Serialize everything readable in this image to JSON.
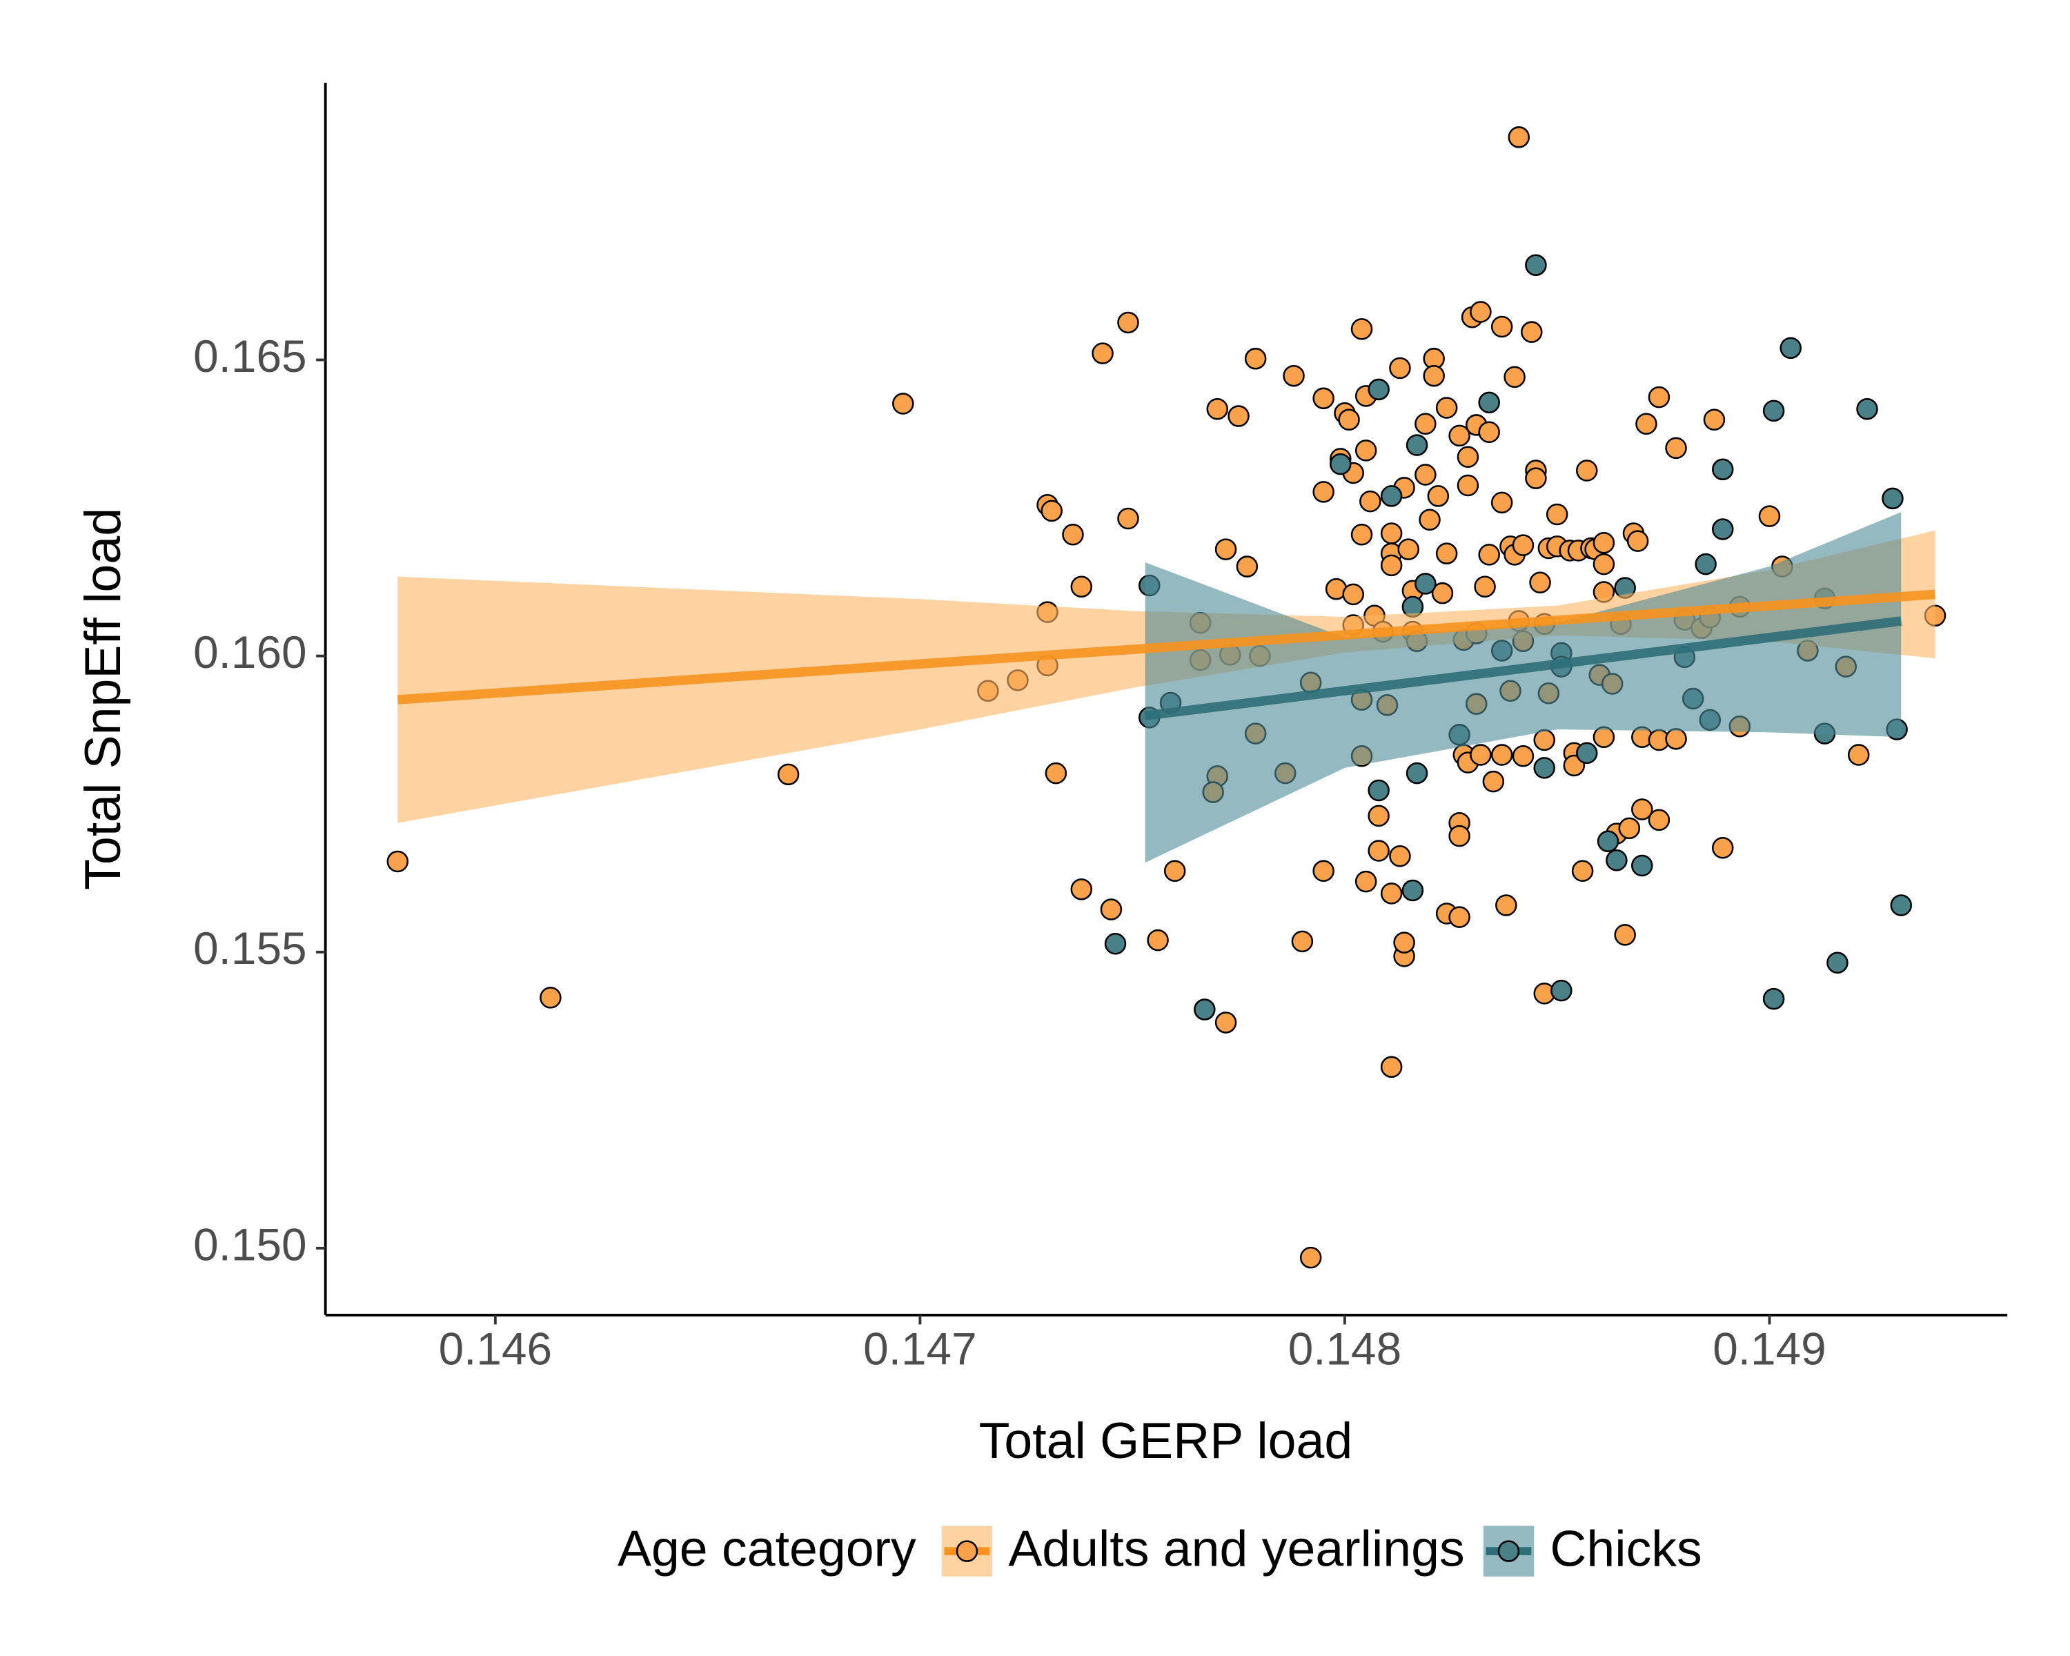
{
  "chart_data": {
    "type": "scatter",
    "xlabel": "Total GERP load",
    "ylabel": "Total SnpEff load",
    "legend_title": "Age category",
    "legend": "bottom",
    "xlim": [
      0.1456,
      0.14956
    ],
    "ylim": [
      0.14887,
      0.16968
    ],
    "xticks": [
      0.146,
      0.147,
      0.148,
      0.149
    ],
    "yticks": [
      {
        "value": 0.15,
        "label": "0.150"
      },
      0.155,
      {
        "value": 0.16,
        "label": "0.160"
      },
      0.165
    ],
    "series": [
      {
        "name": "Adults and yearlings",
        "color": "#f7931e",
        "point_color": "#f9a24b",
        "band_color": "#fdb462",
        "x": [
          0.14577,
          0.14613,
          0.14669,
          0.14696,
          0.14716,
          0.14723,
          0.1473,
          0.14731,
          0.1473,
          0.1473,
          0.14732,
          0.14736,
          0.14738,
          0.14738,
          0.14743,
          0.14745,
          0.14749,
          0.14749,
          0.14756,
          0.1476,
          0.14766,
          0.14766,
          0.1477,
          0.1477,
          0.14772,
          0.14769,
          0.14773,
          0.14775,
          0.14777,
          0.14779,
          0.14779,
          0.1478,
          0.14772,
          0.14786,
          0.14788,
          0.1479,
          0.14792,
          0.14792,
          0.14795,
          0.14795,
          0.14795,
          0.14798,
          0.14799,
          0.148,
          0.14801,
          0.14802,
          0.14802,
          0.14802,
          0.14804,
          0.14804,
          0.14804,
          0.14805,
          0.14804,
          0.14805,
          0.14806,
          0.14805,
          0.14807,
          0.14808,
          0.14808,
          0.14809,
          0.1481,
          0.14811,
          0.14811,
          0.14811,
          0.14813,
          0.14811,
          0.14813,
          0.14814,
          0.14814,
          0.14811,
          0.14814,
          0.14815,
          0.14816,
          0.14816,
          0.14817,
          0.14819,
          0.14819,
          0.1482,
          0.14821,
          0.14821,
          0.14822,
          0.14823,
          0.14824,
          0.14824,
          0.14824,
          0.14827,
          0.14827,
          0.14827,
          0.14827,
          0.14828,
          0.14828,
          0.14829,
          0.14829,
          0.14829,
          0.1483,
          0.14831,
          0.14831,
          0.14831,
          0.14832,
          0.14832,
          0.14833,
          0.14834,
          0.14834,
          0.14835,
          0.14837,
          0.14837,
          0.14837,
          0.14838,
          0.14839,
          0.14839,
          0.1484,
          0.1484,
          0.14841,
          0.14842,
          0.14841,
          0.14842,
          0.14842,
          0.14844,
          0.14845,
          0.14845,
          0.14846,
          0.14847,
          0.14847,
          0.14847,
          0.14848,
          0.14848,
          0.1485,
          0.1485,
          0.14853,
          0.14854,
          0.14854,
          0.14855,
          0.14856,
          0.14857,
          0.14858,
          0.14859,
          0.1486,
          0.14861,
          0.14861,
          0.14861,
          0.14861,
          0.14863,
          0.14864,
          0.14865,
          0.14866,
          0.14867,
          0.14868,
          0.14869,
          0.1487,
          0.1487,
          0.14871,
          0.14874,
          0.14874,
          0.14874,
          0.14878,
          0.14878,
          0.1488,
          0.14884,
          0.14886,
          0.14887,
          0.14889,
          0.14893,
          0.14893,
          0.149,
          0.14903,
          0.14909,
          0.14913,
          0.14921,
          0.14939,
          0.14918
        ],
        "y": [
          0.15653,
          0.15423,
          0.158,
          0.16426,
          0.15941,
          0.15959,
          0.16255,
          0.16245,
          0.16074,
          0.15984,
          0.15802,
          0.16205,
          0.16117,
          0.15606,
          0.16511,
          0.15572,
          0.16232,
          0.16563,
          0.1552,
          0.15637,
          0.16056,
          0.15993,
          0.16417,
          0.15797,
          0.1618,
          0.1577,
          0.16002,
          0.16405,
          0.16151,
          0.16502,
          0.15869,
          0.16,
          0.15381,
          0.15802,
          0.16473,
          0.15518,
          0.14984,
          0.15955,
          0.15637,
          0.16277,
          0.16435,
          0.16113,
          0.16333,
          0.1641,
          0.16399,
          0.16309,
          0.16104,
          0.16052,
          0.15926,
          0.15831,
          0.16552,
          0.16439,
          0.16205,
          0.16347,
          0.16261,
          0.15619,
          0.16068,
          0.1573,
          0.15671,
          0.16041,
          0.15917,
          0.16207,
          0.16173,
          0.16153,
          0.16486,
          0.15599,
          0.15662,
          0.15493,
          0.15516,
          0.15306,
          0.16284,
          0.1618,
          0.1611,
          0.16041,
          0.16025,
          0.16392,
          0.16306,
          0.1623,
          0.16502,
          0.16473,
          0.1627,
          0.16106,
          0.15565,
          0.16419,
          0.16173,
          0.16372,
          0.15559,
          0.15718,
          0.15696,
          0.15833,
          0.16027,
          0.16336,
          0.16288,
          0.1582,
          0.16572,
          0.15919,
          0.16038,
          0.1639,
          0.16581,
          0.15833,
          0.16117,
          0.16378,
          0.16171,
          0.15788,
          0.16556,
          0.16259,
          0.15833,
          0.15579,
          0.16185,
          0.15941,
          0.16471,
          0.16171,
          0.16059,
          0.16025,
          0.16876,
          0.16187,
          0.15831,
          0.16547,
          0.16313,
          0.163,
          0.16124,
          0.15858,
          0.1543,
          0.16054,
          0.16182,
          0.15937,
          0.16185,
          0.16239,
          0.16178,
          0.15836,
          0.15815,
          0.16178,
          0.15637,
          0.16313,
          0.16182,
          0.1618,
          0.15968,
          0.16155,
          0.16108,
          0.15863,
          0.16191,
          0.15953,
          0.157,
          0.16054,
          0.15529,
          0.15709,
          0.16207,
          0.16194,
          0.15741,
          0.15863,
          0.16392,
          0.15723,
          0.15858,
          0.16437,
          0.1586,
          0.16351,
          0.16061,
          0.16047,
          0.16065,
          0.16399,
          0.15676,
          0.16083,
          0.15881,
          0.16236,
          0.16151,
          0.16009,
          0.16097,
          0.15833,
          0.16068,
          0.15982
        ],
        "fit": {
          "x": [
            0.14577,
            0.14939
          ],
          "y": [
            0.15926,
            0.16104
          ]
        },
        "band": {
          "x": [
            0.14577,
            0.147,
            0.1475,
            0.148,
            0.1485,
            0.149,
            0.14939
          ],
          "lower": [
            0.15718,
            0.15876,
            0.15946,
            0.16006,
            0.16035,
            0.16025,
            0.15996
          ],
          "upper": [
            0.16134,
            0.16096,
            0.16076,
            0.16066,
            0.16085,
            0.16145,
            0.16212
          ]
        }
      },
      {
        "name": "Chicks",
        "color": "#2d6e78",
        "point_color": "#4a8088",
        "band_color": "#4e8a96",
        "x": [
          0.14746,
          0.14754,
          0.14754,
          0.14759,
          0.14767,
          0.14799,
          0.14808,
          0.14811,
          0.14808,
          0.14816,
          0.14816,
          0.14817,
          0.14817,
          0.14819,
          0.14827,
          0.14834,
          0.14837,
          0.14845,
          0.14847,
          0.14851,
          0.14851,
          0.14851,
          0.14857,
          0.14862,
          0.14864,
          0.1487,
          0.14866,
          0.1488,
          0.14882,
          0.14885,
          0.14886,
          0.14889,
          0.14889,
          0.14901,
          0.14901,
          0.14905,
          0.14913,
          0.14913,
          0.14916,
          0.14923,
          0.14929,
          0.14931,
          0.1493
        ],
        "y": [
          0.15514,
          0.16119,
          0.15896,
          0.15921,
          0.15403,
          0.16324,
          0.1645,
          0.1627,
          0.15773,
          0.16083,
          0.15604,
          0.16356,
          0.15802,
          0.16122,
          0.15867,
          0.16428,
          0.16009,
          0.1666,
          0.15811,
          0.16005,
          0.15982,
          0.15435,
          0.15836,
          0.15687,
          0.15655,
          0.15646,
          0.16115,
          0.15998,
          0.15928,
          0.16155,
          0.15892,
          0.16315,
          0.16214,
          0.16414,
          0.15421,
          0.1652,
          0.15869,
          0.16097,
          0.15482,
          0.16417,
          0.16266,
          0.15579,
          0.15876
        ],
        "fit": {
          "x": [
            0.14753,
            0.14931
          ],
          "y": [
            0.15899,
            0.16059
          ]
        },
        "band": {
          "x": [
            0.14753,
            0.148,
            0.1485,
            0.149,
            0.14931
          ],
          "lower": [
            0.15651,
            0.15811,
            0.15876,
            0.15871,
            0.15863
          ],
          "upper": [
            0.16158,
            0.16031,
            0.16056,
            0.16151,
            0.16243
          ]
        }
      }
    ]
  }
}
